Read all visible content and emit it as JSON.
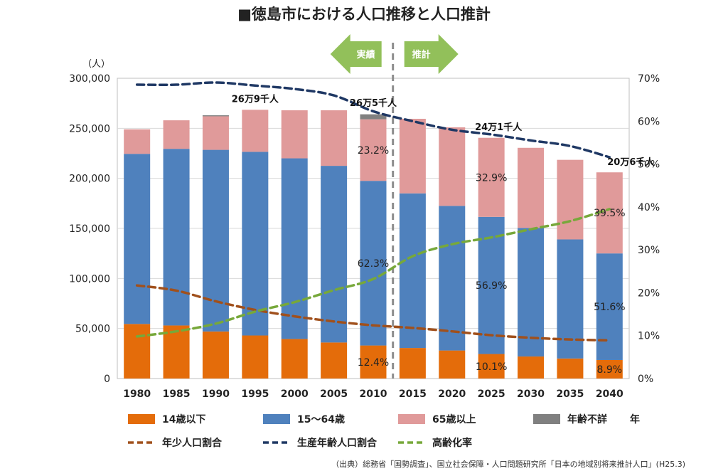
{
  "page_title": "■徳島市における人口推移と人口推計",
  "source": "（出典）総務省「国勢調査」、国立社会保障・人口問題研究所「日本の地域別将来推計人口」(H25.3)",
  "chart_data": {
    "type": "bar",
    "stacked": true,
    "title": "■徳島市における人口推移と人口推計",
    "categories": [
      "1980",
      "1985",
      "1990",
      "1995",
      "2000",
      "2005",
      "2010",
      "2015",
      "2020",
      "2025",
      "2030",
      "2035",
      "2040"
    ],
    "x_unit": "年",
    "y_left": {
      "unit": "（人）",
      "range": [
        0,
        300000
      ],
      "ticks": [
        "0",
        "50,000",
        "100,000",
        "150,000",
        "200,000",
        "250,000",
        "300,000"
      ]
    },
    "y_right": {
      "range": [
        0,
        70
      ],
      "ticks": [
        "0%",
        "10%",
        "20%",
        "30%",
        "40%",
        "50%",
        "60%",
        "70%"
      ]
    },
    "grid": true,
    "bar_series": [
      {
        "name": "14歳以下",
        "color": "#e46c0a",
        "values": [
          54500,
          53000,
          47000,
          43000,
          39500,
          36000,
          33000,
          30500,
          28000,
          24500,
          22000,
          20000,
          18500
        ]
      },
      {
        "name": "15～64歳",
        "color": "#4f81bd",
        "values": [
          170000,
          176500,
          181500,
          183500,
          180500,
          176500,
          164500,
          154500,
          144500,
          137000,
          128500,
          119000,
          106500
        ]
      },
      {
        "name": "65歳以上",
        "color": "#e09a9a",
        "values": [
          24500,
          28500,
          33500,
          42000,
          48000,
          55500,
          61500,
          74500,
          78500,
          79000,
          80000,
          79500,
          81000
        ]
      },
      {
        "name": "年齢不詳",
        "color": "#808080",
        "values": [
          0,
          0,
          1000,
          0,
          0,
          0,
          5000,
          0,
          0,
          0,
          0,
          0,
          0
        ]
      }
    ],
    "line_series": [
      {
        "name": "年少人口割合",
        "color": "#a0501c",
        "values": [
          21.7,
          20.5,
          18.0,
          16.0,
          14.5,
          13.3,
          12.4,
          11.8,
          11.0,
          10.1,
          9.5,
          9.1,
          8.9
        ]
      },
      {
        "name": "生産年齢人口割合",
        "color": "#1f3864",
        "values": [
          68.5,
          68.5,
          69.0,
          68.3,
          67.5,
          66.0,
          62.3,
          60.0,
          58.0,
          56.9,
          55.5,
          54.2,
          51.6
        ]
      },
      {
        "name": "高齢化率",
        "color": "#77a83a",
        "values": [
          9.8,
          11.0,
          12.8,
          15.6,
          17.8,
          20.6,
          23.2,
          28.5,
          31.3,
          32.9,
          34.8,
          36.7,
          39.5
        ]
      }
    ],
    "legend_placement": "bottom",
    "legend_unit": "年",
    "phase_labels": {
      "actual": "実績",
      "projection": "推計"
    },
    "annotations": [
      {
        "text": "26万9千人",
        "category": "1995",
        "series": "bar_total",
        "value": 269000
      },
      {
        "text": "26万5千人",
        "category": "2010",
        "series": "bar_total",
        "value": 265000
      },
      {
        "text": "24万1千人",
        "category": "2025",
        "series": "bar_total",
        "value": 241000
      },
      {
        "text": "20万6千人",
        "category": "2040",
        "series": "bar_total",
        "value": 206000
      }
    ],
    "value_labels": [
      {
        "text": "23.2%",
        "category": "2010",
        "series": "65歳以上"
      },
      {
        "text": "62.3%",
        "category": "2010",
        "series": "15～64歳"
      },
      {
        "text": "12.4%",
        "category": "2010",
        "series": "14歳以下"
      },
      {
        "text": "32.9%",
        "category": "2025",
        "series": "65歳以上"
      },
      {
        "text": "56.9%",
        "category": "2025",
        "series": "15～64歳"
      },
      {
        "text": "10.1%",
        "category": "2025",
        "series": "14歳以下"
      },
      {
        "text": "39.5%",
        "category": "2040",
        "series": "65歳以上"
      },
      {
        "text": "51.6%",
        "category": "2040",
        "series": "15～64歳"
      },
      {
        "text": "8.9%",
        "category": "2040",
        "series": "14歳以下"
      }
    ]
  }
}
